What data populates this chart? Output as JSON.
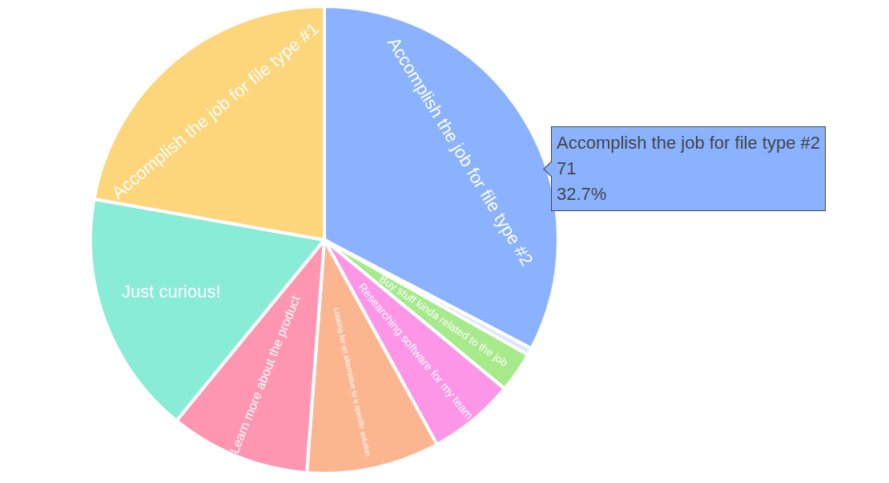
{
  "chart_data": {
    "type": "pie",
    "categories": [
      "Accomplish the job for file type #2",
      null,
      "Buy stuff kinda related to the job",
      "Researching software for my team",
      "Looking for an alternative to a specific solution",
      "Learn more about the product",
      "Just curious!",
      "Accomplish the job for file type #1"
    ],
    "values": [
      32.7,
      0.5,
      2.8,
      6.0,
      9.2,
      9.7,
      16.9,
      22.2
    ],
    "colors": [
      "#8ab2fe",
      "#dde7fa",
      "#a7ea8b",
      "#fe96e8",
      "#fbb690",
      "#fe96b2",
      "#89ecd7",
      "#fdd57a"
    ],
    "annotations": [
      "Accomplish the job for file type #2",
      "71",
      "32.7%"
    ],
    "legend": false
  }
}
